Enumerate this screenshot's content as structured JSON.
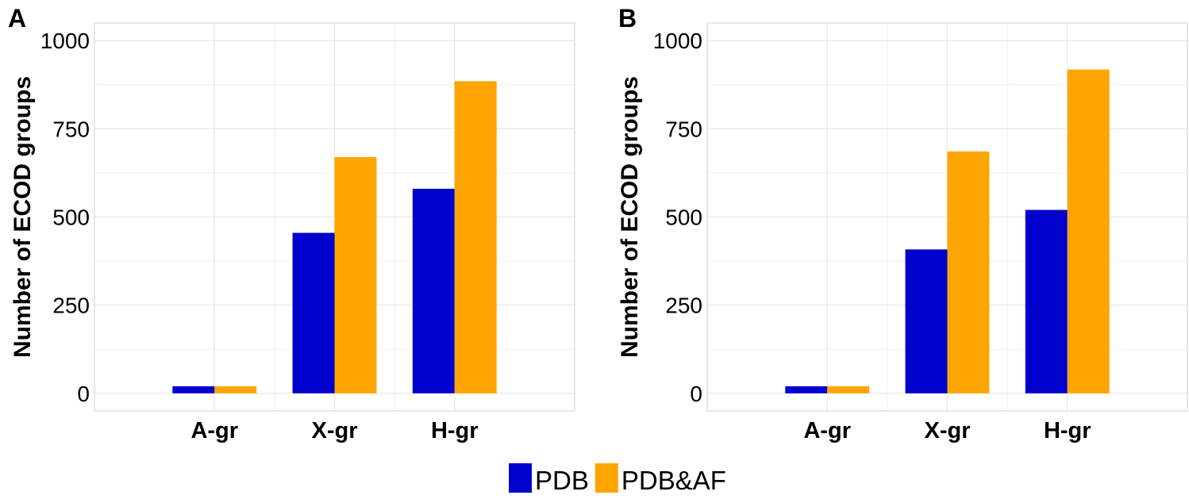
{
  "chart_data": [
    {
      "panel": "A",
      "type": "bar",
      "categories": [
        "A-gr",
        "X-gr",
        "H-gr"
      ],
      "series": [
        {
          "name": "PDB",
          "values": [
            20,
            455,
            580
          ]
        },
        {
          "name": "PDB&AF",
          "values": [
            20,
            670,
            885
          ]
        }
      ],
      "ylabel": "Number of ECOD groups",
      "xlabel": "",
      "yticks": [
        0,
        250,
        500,
        750,
        1000
      ],
      "ylim": [
        -50,
        1050
      ],
      "grid": true
    },
    {
      "panel": "B",
      "type": "bar",
      "categories": [
        "A-gr",
        "X-gr",
        "H-gr"
      ],
      "series": [
        {
          "name": "PDB",
          "values": [
            20,
            408,
            520
          ]
        },
        {
          "name": "PDB&AF",
          "values": [
            20,
            686,
            918
          ]
        }
      ],
      "ylabel": "Number of ECOD groups",
      "xlabel": "",
      "yticks": [
        0,
        250,
        500,
        750,
        1000
      ],
      "ylim": [
        -50,
        1050
      ],
      "grid": true
    }
  ],
  "legend": {
    "position": "bottom",
    "items": [
      {
        "label": "PDB",
        "color": "#0000CD"
      },
      {
        "label": "PDB&AF",
        "color": "#FFA500"
      }
    ]
  }
}
